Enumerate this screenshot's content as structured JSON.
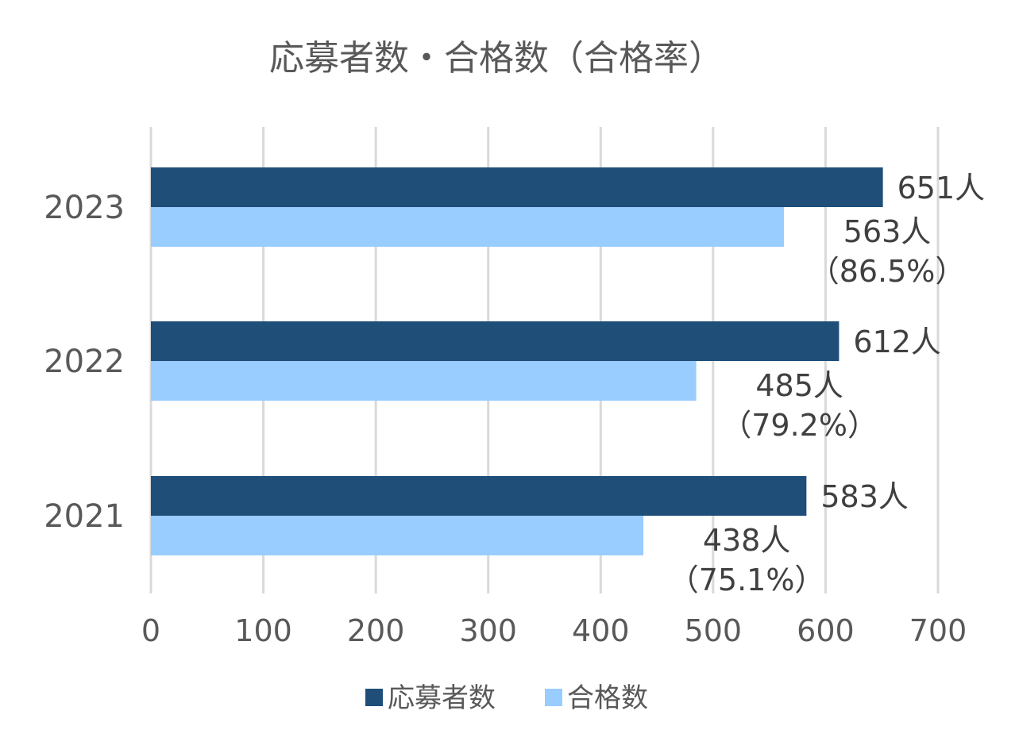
{
  "chart_data": {
    "type": "bar",
    "orientation": "horizontal",
    "title": "応募者数・合格数（合格率）",
    "categories": [
      "2023",
      "2022",
      "2021"
    ],
    "series": [
      {
        "name": "応募者数",
        "color": "#1F4E79",
        "values": [
          651,
          612,
          583
        ],
        "labels": [
          "651人",
          "612人",
          "583人"
        ]
      },
      {
        "name": "合格数",
        "color": "#99CCFF",
        "values": [
          563,
          485,
          438
        ],
        "labels": [
          "563人",
          "485人",
          "438人"
        ],
        "sublabels": [
          "（86.5%）",
          "（79.2%）",
          "（75.1%）"
        ]
      }
    ],
    "xlim": [
      0,
      700
    ],
    "xticks": [
      0,
      100,
      200,
      300,
      400,
      500,
      600,
      700
    ],
    "grid": true,
    "legend": "bottom"
  }
}
